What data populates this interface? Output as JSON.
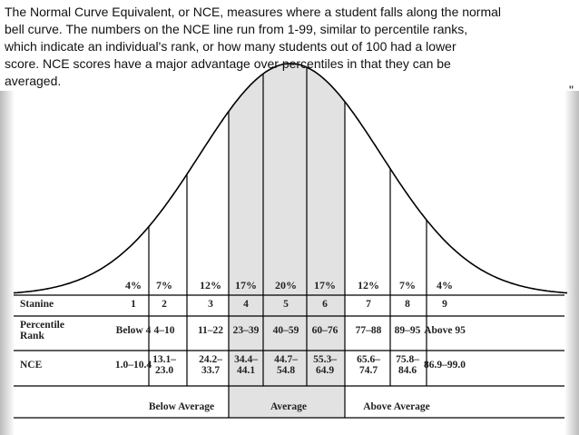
{
  "paragraph": [
    "The Normal Curve Equivalent, or NCE, measures where a student falls along the normal",
    "bell curve. The numbers on the NCE line run from 1-99, similar to percentile ranks,",
    "which indicate an individual's rank, or how many students out of 100 had a lower",
    "score.  NCE scores have a major advantage over percentiles in that they can be",
    "averaged."
  ],
  "stray_mark": "\"",
  "percentages": [
    "4%",
    "7%",
    "12%",
    "17%",
    "20%",
    "17%",
    "12%",
    "7%",
    "4%"
  ],
  "table": {
    "rows": [
      {
        "label": [
          "Stanine"
        ],
        "cells": [
          [
            "1"
          ],
          [
            "2"
          ],
          [
            "3"
          ],
          [
            "4"
          ],
          [
            "5"
          ],
          [
            "6"
          ],
          [
            "7"
          ],
          [
            "8"
          ],
          [
            "9"
          ]
        ]
      },
      {
        "label": [
          "Percentile",
          "Rank"
        ],
        "cells": [
          [
            "Below 4"
          ],
          [
            "4–10"
          ],
          [
            "11–22"
          ],
          [
            "23–39"
          ],
          [
            "40–59"
          ],
          [
            "60–76"
          ],
          [
            "77–88"
          ],
          [
            "89–95"
          ],
          [
            "Above 95"
          ]
        ]
      },
      {
        "label": [
          "NCE"
        ],
        "cells": [
          [
            "1.0–10.4"
          ],
          [
            "13.1–",
            "23.0"
          ],
          [
            "24.2–",
            "33.7"
          ],
          [
            "34.4–",
            "44.1"
          ],
          [
            "44.7–",
            "54.8"
          ],
          [
            "55.3–",
            "64.9"
          ],
          [
            "65.6–",
            "74.7"
          ],
          [
            "75.8–",
            "84.6"
          ],
          [
            "86.9–99.0"
          ]
        ]
      }
    ],
    "groups": [
      "Below Average",
      "Average",
      "Above Average"
    ]
  }
}
